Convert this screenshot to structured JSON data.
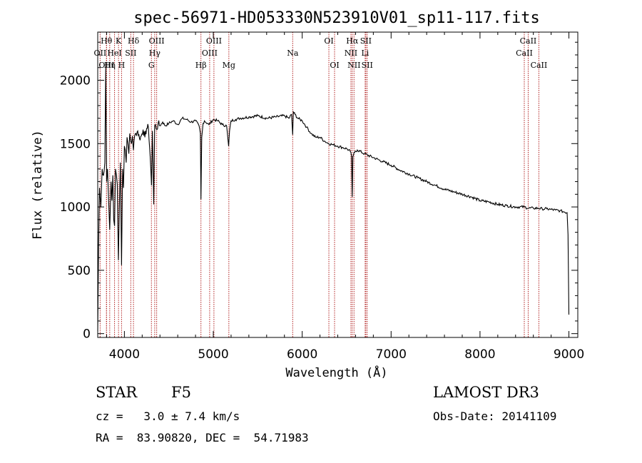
{
  "chart_data": {
    "type": "line",
    "title": "spec-56971-HD053330N523910V01_sp11-117.fits",
    "xlabel": "Wavelength (Å)",
    "ylabel": "Flux (relative)",
    "xlim": [
      3700,
      9100
    ],
    "ylim": [
      -30,
      2380
    ],
    "xticks": [
      4000,
      5000,
      6000,
      7000,
      8000,
      9000
    ],
    "yticks": [
      0,
      500,
      1000,
      1500,
      2000
    ],
    "series": [
      {
        "name": "spectrum",
        "x": [
          3700,
          3710,
          3720,
          3735,
          3750,
          3765,
          3780,
          3790,
          3800,
          3810,
          3820,
          3835,
          3850,
          3860,
          3870,
          3880,
          3889,
          3900,
          3910,
          3920,
          3933,
          3945,
          3955,
          3968,
          3980,
          3990,
          4000,
          4010,
          4020,
          4030,
          4040,
          4050,
          4060,
          4070,
          4080,
          4090,
          4102,
          4115,
          4130,
          4150,
          4170,
          4190,
          4210,
          4230,
          4250,
          4270,
          4290,
          4305,
          4315,
          4330,
          4340,
          4350,
          4365,
          4380,
          4400,
          4430,
          4460,
          4500,
          4550,
          4600,
          4650,
          4700,
          4750,
          4800,
          4840,
          4855,
          4861,
          4870,
          4885,
          4900,
          4950,
          5000,
          5050,
          5100,
          5150,
          5172,
          5183,
          5200,
          5250,
          5300,
          5400,
          5500,
          5600,
          5700,
          5800,
          5850,
          5880,
          5893,
          5900,
          5920,
          5950,
          6000,
          6050,
          6100,
          6150,
          6200,
          6250,
          6300,
          6350,
          6400,
          6450,
          6500,
          6540,
          6555,
          6563,
          6570,
          6590,
          6620,
          6700,
          6800,
          6900,
          7000,
          7100,
          7200,
          7300,
          7400,
          7500,
          7600,
          7700,
          7800,
          7900,
          8000,
          8100,
          8200,
          8300,
          8400,
          8498,
          8542,
          8600,
          8662,
          8700,
          8750,
          8800,
          8850,
          8900,
          8950,
          8980,
          8990,
          9000
        ],
        "y": [
          20,
          700,
          1150,
          1000,
          1300,
          1250,
          1350,
          2100,
          1200,
          1300,
          1100,
          820,
          1200,
          1050,
          1250,
          900,
          850,
          1300,
          1250,
          1180,
          580,
          1050,
          1350,
          540,
          1300,
          1150,
          1480,
          1450,
          1350,
          1550,
          1500,
          1420,
          1580,
          1520,
          1500,
          1560,
          1450,
          1560,
          1580,
          1600,
          1540,
          1560,
          1610,
          1550,
          1620,
          1630,
          1400,
          1170,
          1600,
          1020,
          1640,
          1650,
          1610,
          1660,
          1640,
          1670,
          1640,
          1660,
          1680,
          1650,
          1700,
          1690,
          1670,
          1680,
          1640,
          1580,
          1060,
          1550,
          1660,
          1680,
          1650,
          1690,
          1680,
          1650,
          1640,
          1480,
          1600,
          1680,
          1690,
          1700,
          1710,
          1720,
          1700,
          1710,
          1720,
          1700,
          1730,
          1570,
          1750,
          1730,
          1700,
          1680,
          1630,
          1580,
          1550,
          1550,
          1520,
          1500,
          1490,
          1480,
          1470,
          1460,
          1440,
          1400,
          1080,
          1400,
          1430,
          1450,
          1420,
          1390,
          1360,
          1330,
          1290,
          1260,
          1230,
          1200,
          1170,
          1140,
          1120,
          1100,
          1080,
          1050,
          1040,
          1020,
          1010,
          1000,
          1000,
          990,
          990,
          990,
          985,
          985,
          980,
          975,
          970,
          960,
          955,
          780,
          150
        ]
      }
    ]
  },
  "spectral_lines": [
    {
      "label": "OII",
      "wl": 3727,
      "row": 2
    },
    {
      "label": "Hθ",
      "wl": 3798,
      "row": 1
    },
    {
      "label": "OIII",
      "wl": 3800,
      "row": 3
    },
    {
      "label": "Hη",
      "wl": 3835,
      "row": 3
    },
    {
      "label": "HeI",
      "wl": 3889,
      "row": 2
    },
    {
      "label": "K",
      "wl": 3934,
      "row": 1
    },
    {
      "label": "H",
      "wl": 3968,
      "row": 3
    },
    {
      "label": "SII",
      "wl": 4072,
      "row": 2
    },
    {
      "label": "Hδ",
      "wl": 4102,
      "row": 1
    },
    {
      "label": "G",
      "wl": 4304,
      "row": 3
    },
    {
      "label": "OIII",
      "wl": 4363,
      "row": 1
    },
    {
      "label": "Hγ",
      "wl": 4341,
      "row": 2
    },
    {
      "label": "Hβ",
      "wl": 4861,
      "row": 3
    },
    {
      "label": "OIII",
      "wl": 5007,
      "row": 1
    },
    {
      "label": "OIII",
      "wl": 4959,
      "row": 2
    },
    {
      "label": "Mg",
      "wl": 5175,
      "row": 3
    },
    {
      "label": "Na",
      "wl": 5893,
      "row": 2
    },
    {
      "label": "OI",
      "wl": 6300,
      "row": 1
    },
    {
      "label": "OI",
      "wl": 6364,
      "row": 3
    },
    {
      "label": "Hα",
      "wl": 6563,
      "row": 1
    },
    {
      "label": "NII",
      "wl": 6548,
      "row": 2
    },
    {
      "label": "NII",
      "wl": 6583,
      "row": 3
    },
    {
      "label": "SII",
      "wl": 6716,
      "row": 1
    },
    {
      "label": "Li",
      "wl": 6708,
      "row": 2
    },
    {
      "label": "SII",
      "wl": 6731,
      "row": 3
    },
    {
      "label": "CaII",
      "wl": 8498,
      "row": 2
    },
    {
      "label": "CaII",
      "wl": 8542,
      "row": 1
    },
    {
      "label": "CaII",
      "wl": 8662,
      "row": 3
    }
  ],
  "info": {
    "object_class": "STAR",
    "subclass": "F5",
    "survey": "LAMOST DR3",
    "redshift": "cz =   3.0 ± 7.4 km/s",
    "obs_date": "Obs-Date: 20141109",
    "coords": "RA =  83.90820, DEC =  54.71983"
  },
  "colors": {
    "line_marker": "#b22222",
    "spectrum": "#000000"
  }
}
